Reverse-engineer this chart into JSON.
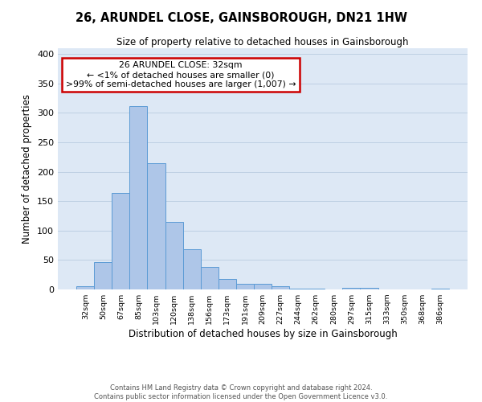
{
  "title": "26, ARUNDEL CLOSE, GAINSBOROUGH, DN21 1HW",
  "subtitle": "Size of property relative to detached houses in Gainsborough",
  "xlabel": "Distribution of detached houses by size in Gainsborough",
  "ylabel": "Number of detached properties",
  "categories": [
    "32sqm",
    "50sqm",
    "67sqm",
    "85sqm",
    "103sqm",
    "120sqm",
    "138sqm",
    "156sqm",
    "173sqm",
    "191sqm",
    "209sqm",
    "227sqm",
    "244sqm",
    "262sqm",
    "280sqm",
    "297sqm",
    "315sqm",
    "333sqm",
    "350sqm",
    "368sqm",
    "386sqm"
  ],
  "values": [
    5,
    46,
    164,
    311,
    215,
    115,
    68,
    38,
    18,
    10,
    10,
    6,
    2,
    2,
    0,
    3,
    3,
    0,
    0,
    0,
    2
  ],
  "bar_color": "#aec6e8",
  "bar_edge_color": "#5b9bd5",
  "background_color": "#dde8f5",
  "annotation_box_text": [
    "26 ARUNDEL CLOSE: 32sqm",
    "← <1% of detached houses are smaller (0)",
    ">99% of semi-detached houses are larger (1,007) →"
  ],
  "annotation_box_facecolor": "white",
  "annotation_box_edgecolor": "#cc0000",
  "ylim": [
    0,
    410
  ],
  "yticks": [
    0,
    50,
    100,
    150,
    200,
    250,
    300,
    350,
    400
  ],
  "grid_color": "#b8cce0",
  "footer_line1": "Contains HM Land Registry data © Crown copyright and database right 2024.",
  "footer_line2": "Contains public sector information licensed under the Open Government Licence v3.0."
}
